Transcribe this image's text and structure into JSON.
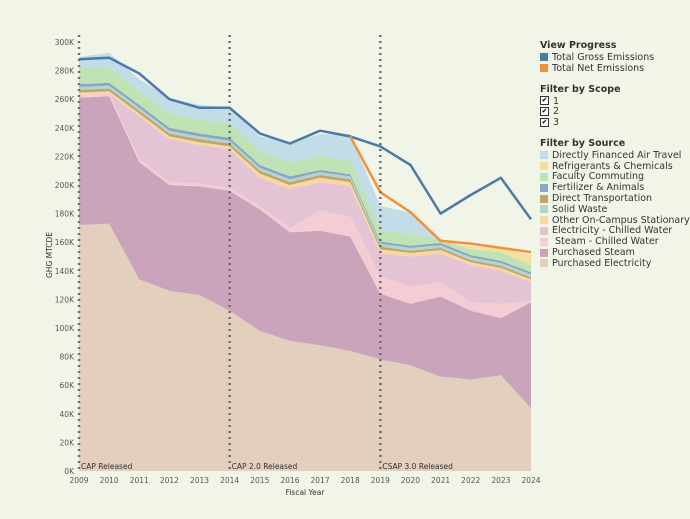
{
  "chart_data": {
    "type": "area",
    "ylabel": "GHG MTCDE",
    "xlabel": "Fiscal Year",
    "ylim": [
      0,
      300000
    ],
    "yticks": [
      0,
      20000,
      40000,
      60000,
      80000,
      100000,
      120000,
      140000,
      160000,
      180000,
      200000,
      220000,
      240000,
      260000,
      280000,
      300000
    ],
    "ytick_labels": [
      "0K",
      "20K",
      "40K",
      "60K",
      "80K",
      "100K",
      "120K",
      "140K",
      "160K",
      "180K",
      "200K",
      "220K",
      "240K",
      "260K",
      "280K",
      "300K"
    ],
    "x": [
      2009,
      2010,
      2011,
      2012,
      2013,
      2014,
      2015,
      2016,
      2017,
      2018,
      2019,
      2020,
      2021,
      2022,
      2023,
      2024
    ],
    "x_labels": [
      "2009",
      "2010",
      "2011",
      "2012",
      "2013",
      "2014",
      "2015",
      "2016",
      "2017",
      "2018",
      "2019",
      "2020",
      "2021",
      "2022",
      "2023",
      "2024"
    ],
    "stack_series": [
      {
        "name": "Purchased Electricity",
        "color": "#e2cfbd",
        "values": [
          172000,
          173000,
          134000,
          126000,
          123000,
          112000,
          98000,
          91000,
          88000,
          84000,
          78000,
          74000,
          66000,
          64000,
          67000,
          44000
        ]
      },
      {
        "name": "Purchased Steam",
        "color": "#c9a4bb",
        "values": [
          89000,
          89000,
          82000,
          74000,
          76000,
          84000,
          85000,
          76000,
          80000,
          80000,
          46000,
          43000,
          56000,
          48000,
          40000,
          74000
        ]
      },
      {
        "name": "Steam - Chilled Water",
        "color": "#f4cdd4",
        "values": [
          2000,
          2000,
          2000,
          2000,
          2000,
          2000,
          2000,
          3000,
          14000,
          14000,
          12000,
          12000,
          10000,
          6000,
          10000,
          1000
        ]
      },
      {
        "name": "Electricity - Chilled Water",
        "color": "#e4c3d5",
        "values": [
          0,
          0,
          30000,
          30000,
          27000,
          27000,
          20000,
          27000,
          20000,
          21000,
          16000,
          21000,
          20000,
          26000,
          23000,
          13000
        ]
      },
      {
        "name": "Other On-Campus Stationary",
        "color": "#f7d7a4",
        "values": [
          1500,
          1500,
          2000,
          2000,
          2000,
          2000,
          3000,
          3000,
          3000,
          3000,
          3000,
          2500,
          2500,
          2000,
          2000,
          2000
        ]
      },
      {
        "name": "Direct Transportation",
        "color": "#c2a56a",
        "values": [
          2000,
          2000,
          2000,
          2000,
          2000,
          2000,
          2000,
          2000,
          2000,
          2000,
          2000,
          1500,
          1500,
          1500,
          1500,
          1500
        ]
      },
      {
        "name": "Solid Waste",
        "color": "#b2d5cf",
        "values": [
          2000,
          2000,
          2000,
          2000,
          2000,
          2000,
          2000,
          2000,
          2000,
          2000,
          2000,
          2000,
          2000,
          2000,
          2000,
          2000
        ]
      },
      {
        "name": "Fertilizer & Animals",
        "color": "#8aa6c4",
        "values": [
          2000,
          2000,
          2000,
          2000,
          2000,
          2000,
          2000,
          2000,
          1500,
          1500,
          1500,
          1500,
          1500,
          1500,
          1500,
          1500
        ]
      },
      {
        "name": "Faculty Commuting",
        "color": "#bfe3b4",
        "values": [
          12000,
          11000,
          10000,
          10000,
          10000,
          10000,
          10000,
          10000,
          10000,
          10000,
          8000,
          8000,
          2000,
          4000,
          6000,
          5000
        ]
      },
      {
        "name": "Refrigerants & Chemicals",
        "color": "#f3e0a0",
        "values": [
          0,
          0,
          0,
          0,
          0,
          0,
          0,
          0,
          0,
          0,
          0,
          0,
          0,
          2000,
          3000,
          7000
        ]
      },
      {
        "name": "Directly Financed Air Travel",
        "color": "#c2dde8",
        "values": [
          7000,
          10000,
          8000,
          11000,
          10000,
          11000,
          10000,
          14000,
          15000,
          18000,
          17000,
          15000,
          0,
          0,
          0,
          0
        ]
      }
    ],
    "line_series": [
      {
        "name": "Total Gross Emissions",
        "color": "#4b79a8",
        "values": [
          288000,
          289000,
          278000,
          260000,
          254000,
          254000,
          236000,
          229000,
          238000,
          234000,
          227000,
          214000,
          180000,
          193000,
          205000,
          176000
        ]
      },
      {
        "name": "Total Net Emissions",
        "x_start": 2018,
        "color": "#f0923b",
        "values": [
          234000,
          195000,
          181000,
          161000,
          159000,
          156000,
          153000
        ]
      }
    ],
    "markers": [
      {
        "x": 2009,
        "label": "CAP Released"
      },
      {
        "x": 2014,
        "label": "CAP 2.0 Released"
      },
      {
        "x": 2019,
        "label": "CSAP 3.0 Released"
      }
    ]
  },
  "legend": {
    "progress_title": "View Progress",
    "progress_items": [
      {
        "label": "Total Gross Emissions",
        "color": "#4b79a8"
      },
      {
        "label": "Total Net Emissions",
        "color": "#f0923b"
      }
    ],
    "scope_title": "Filter by Scope",
    "scope_items": [
      {
        "label": "1",
        "mark": "✔"
      },
      {
        "label": "2",
        "mark": "✔"
      },
      {
        "label": "3",
        "mark": "✔"
      }
    ],
    "source_title": "Filter by Source",
    "source_items": [
      {
        "label": "Directly Financed Air Travel",
        "color": "#c2dde8"
      },
      {
        "label": "Refrigerants & Chemicals",
        "color": "#f3e0a0"
      },
      {
        "label": "Faculty Commuting",
        "color": "#bfe3b4"
      },
      {
        "label": "Fertilizer & Animals",
        "color": "#8aa6c4"
      },
      {
        "label": "Direct Transportation",
        "color": "#c2a56a"
      },
      {
        "label": "Solid Waste",
        "color": "#b2d5cf"
      },
      {
        "label": "Other On-Campus Stationary",
        "color": "#f7d7a4"
      },
      {
        "label": "Electricity - Chilled Water",
        "color": "#e4c3d5"
      },
      {
        "label": " Steam - Chilled Water",
        "color": "#f4cdd4"
      },
      {
        "label": "Purchased Steam",
        "color": "#c9a4bb"
      },
      {
        "label": "Purchased Electricity",
        "color": "#e2cfbd"
      }
    ]
  }
}
